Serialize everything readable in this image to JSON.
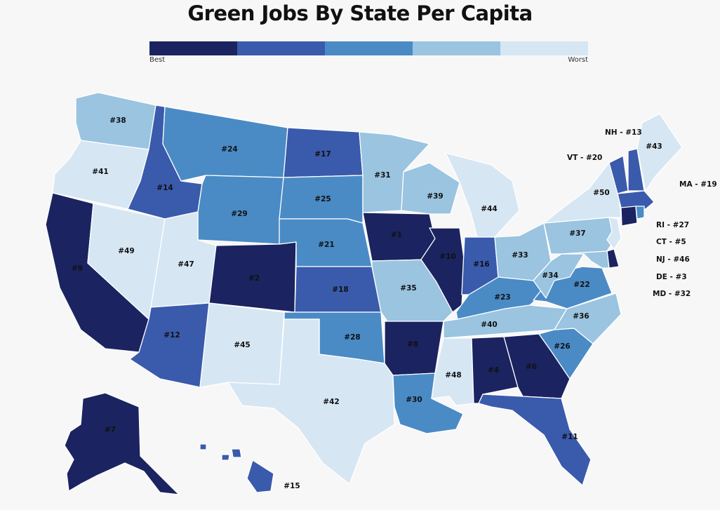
{
  "title": "Green Jobs By State Per Capita",
  "legend": {
    "best_label": "Best",
    "worst_label": "Worst",
    "colors": [
      "#1b2460",
      "#3a5aac",
      "#4a8bc6",
      "#9ac4e0",
      "#d6e6f3"
    ]
  },
  "states": {
    "WA": {
      "rank": "#38",
      "tier": 3
    },
    "OR": {
      "rank": "#41",
      "tier": 4
    },
    "CA": {
      "rank": "#9",
      "tier": 0
    },
    "NV": {
      "rank": "#49",
      "tier": 4
    },
    "ID": {
      "rank": "#14",
      "tier": 1
    },
    "MT": {
      "rank": "#24",
      "tier": 2
    },
    "WY": {
      "rank": "#29",
      "tier": 2
    },
    "UT": {
      "rank": "#47",
      "tier": 4
    },
    "AZ": {
      "rank": "#12",
      "tier": 1
    },
    "CO": {
      "rank": "#2",
      "tier": 0
    },
    "NM": {
      "rank": "#45",
      "tier": 4
    },
    "ND": {
      "rank": "#17",
      "tier": 1
    },
    "SD": {
      "rank": "#25",
      "tier": 2
    },
    "NE": {
      "rank": "#21",
      "tier": 2
    },
    "KS": {
      "rank": "#18",
      "tier": 1
    },
    "OK": {
      "rank": "#28",
      "tier": 2
    },
    "TX": {
      "rank": "#42",
      "tier": 4
    },
    "MN": {
      "rank": "#31",
      "tier": 3
    },
    "IA": {
      "rank": "#1",
      "tier": 0
    },
    "MO": {
      "rank": "#35",
      "tier": 3
    },
    "AR": {
      "rank": "#8",
      "tier": 0
    },
    "LA": {
      "rank": "#30",
      "tier": 2
    },
    "WI": {
      "rank": "#39",
      "tier": 3
    },
    "IL": {
      "rank": "#10",
      "tier": 0
    },
    "MI": {
      "rank": "#44",
      "tier": 4
    },
    "IN": {
      "rank": "#16",
      "tier": 1
    },
    "OH": {
      "rank": "#33",
      "tier": 3
    },
    "KY": {
      "rank": "#23",
      "tier": 2
    },
    "TN": {
      "rank": "#40",
      "tier": 3
    },
    "MS": {
      "rank": "#48",
      "tier": 4
    },
    "AL": {
      "rank": "#4",
      "tier": 0
    },
    "GA": {
      "rank": "#6",
      "tier": 0
    },
    "FL": {
      "rank": "#11",
      "tier": 1
    },
    "SC": {
      "rank": "#26",
      "tier": 2
    },
    "NC": {
      "rank": "#36",
      "tier": 3
    },
    "VA": {
      "rank": "#22",
      "tier": 2
    },
    "WV": {
      "rank": "#34",
      "tier": 3
    },
    "PA": {
      "rank": "#37",
      "tier": 3
    },
    "NY": {
      "rank": "#50",
      "tier": 4
    },
    "ME": {
      "rank": "#43",
      "tier": 4
    },
    "AK": {
      "rank": "#7",
      "tier": 0
    },
    "HI": {
      "rank": "#15",
      "tier": 1
    },
    "NH": {
      "rank": "#13",
      "tier": 1
    },
    "VT": {
      "rank": "#20",
      "tier": 1
    },
    "MA": {
      "rank": "#19",
      "tier": 1
    },
    "RI": {
      "rank": "#27",
      "tier": 2
    },
    "CT": {
      "rank": "#5",
      "tier": 0
    },
    "NJ": {
      "rank": "#46",
      "tier": 4
    },
    "DE": {
      "rank": "#3",
      "tier": 0
    },
    "MD": {
      "rank": "#32",
      "tier": 3
    }
  },
  "callouts": {
    "NH": "NH - #13",
    "VT": "VT - #20",
    "MA": "MA - #19",
    "RI": "RI - #27",
    "CT": "CT - #5",
    "NJ": "NJ - #46",
    "DE": "DE - #3",
    "MD": "MD - #32"
  }
}
